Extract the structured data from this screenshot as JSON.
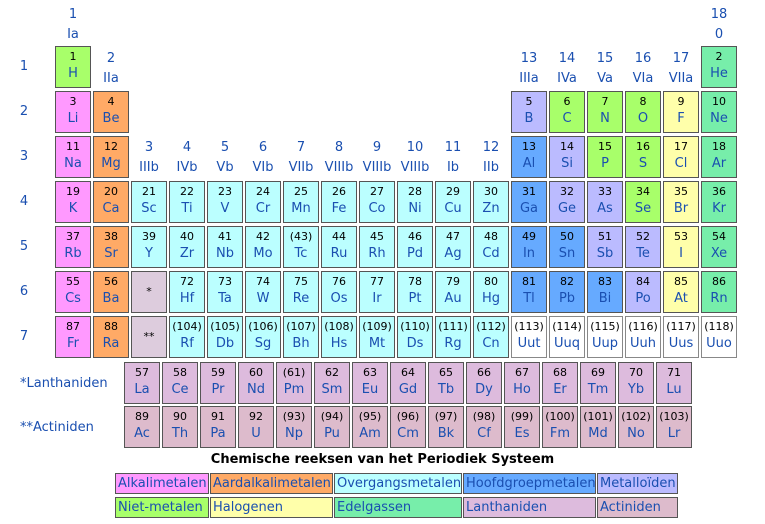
{
  "group_headers": [
    {
      "num": "1",
      "roman": "Ia"
    },
    {
      "num": "2",
      "roman": "IIa"
    },
    {
      "num": "3",
      "roman": "IIIb"
    },
    {
      "num": "4",
      "roman": "IVb"
    },
    {
      "num": "5",
      "roman": "Vb"
    },
    {
      "num": "6",
      "roman": "VIb"
    },
    {
      "num": "7",
      "roman": "VIIb"
    },
    {
      "num": "8",
      "roman": "VIIIb"
    },
    {
      "num": "9",
      "roman": "VIIIb"
    },
    {
      "num": "10",
      "roman": "VIIIb"
    },
    {
      "num": "11",
      "roman": "Ib"
    },
    {
      "num": "12",
      "roman": "IIb"
    },
    {
      "num": "13",
      "roman": "IIIa"
    },
    {
      "num": "14",
      "roman": "IVa"
    },
    {
      "num": "15",
      "roman": "Va"
    },
    {
      "num": "16",
      "roman": "VIa"
    },
    {
      "num": "17",
      "roman": "VIIa"
    },
    {
      "num": "18",
      "roman": "0"
    }
  ],
  "periods": [
    "1",
    "2",
    "3",
    "4",
    "5",
    "6",
    "7"
  ],
  "elements": [
    {
      "n": "1",
      "s": "H",
      "p": 1,
      "g": 1,
      "c": "nonmetal"
    },
    {
      "n": "2",
      "s": "He",
      "p": 1,
      "g": 18,
      "c": "noble"
    },
    {
      "n": "3",
      "s": "Li",
      "p": 2,
      "g": 1,
      "c": "alkali"
    },
    {
      "n": "4",
      "s": "Be",
      "p": 2,
      "g": 2,
      "c": "alkaline"
    },
    {
      "n": "5",
      "s": "B",
      "p": 2,
      "g": 13,
      "c": "metalloid"
    },
    {
      "n": "6",
      "s": "C",
      "p": 2,
      "g": 14,
      "c": "nonmetal"
    },
    {
      "n": "7",
      "s": "N",
      "p": 2,
      "g": 15,
      "c": "nonmetal"
    },
    {
      "n": "8",
      "s": "O",
      "p": 2,
      "g": 16,
      "c": "nonmetal"
    },
    {
      "n": "9",
      "s": "F",
      "p": 2,
      "g": 17,
      "c": "halogen"
    },
    {
      "n": "10",
      "s": "Ne",
      "p": 2,
      "g": 18,
      "c": "noble"
    },
    {
      "n": "11",
      "s": "Na",
      "p": 3,
      "g": 1,
      "c": "alkali"
    },
    {
      "n": "12",
      "s": "Mg",
      "p": 3,
      "g": 2,
      "c": "alkaline"
    },
    {
      "n": "13",
      "s": "Al",
      "p": 3,
      "g": 13,
      "c": "main"
    },
    {
      "n": "14",
      "s": "Si",
      "p": 3,
      "g": 14,
      "c": "metalloid"
    },
    {
      "n": "15",
      "s": "P",
      "p": 3,
      "g": 15,
      "c": "nonmetal"
    },
    {
      "n": "16",
      "s": "S",
      "p": 3,
      "g": 16,
      "c": "nonmetal"
    },
    {
      "n": "17",
      "s": "Cl",
      "p": 3,
      "g": 17,
      "c": "halogen"
    },
    {
      "n": "18",
      "s": "Ar",
      "p": 3,
      "g": 18,
      "c": "noble"
    },
    {
      "n": "19",
      "s": "K",
      "p": 4,
      "g": 1,
      "c": "alkali"
    },
    {
      "n": "20",
      "s": "Ca",
      "p": 4,
      "g": 2,
      "c": "alkaline"
    },
    {
      "n": "21",
      "s": "Sc",
      "p": 4,
      "g": 3,
      "c": "transition"
    },
    {
      "n": "22",
      "s": "Ti",
      "p": 4,
      "g": 4,
      "c": "transition"
    },
    {
      "n": "23",
      "s": "V",
      "p": 4,
      "g": 5,
      "c": "transition"
    },
    {
      "n": "24",
      "s": "Cr",
      "p": 4,
      "g": 6,
      "c": "transition"
    },
    {
      "n": "25",
      "s": "Mn",
      "p": 4,
      "g": 7,
      "c": "transition"
    },
    {
      "n": "26",
      "s": "Fe",
      "p": 4,
      "g": 8,
      "c": "transition"
    },
    {
      "n": "27",
      "s": "Co",
      "p": 4,
      "g": 9,
      "c": "transition"
    },
    {
      "n": "28",
      "s": "Ni",
      "p": 4,
      "g": 10,
      "c": "transition"
    },
    {
      "n": "29",
      "s": "Cu",
      "p": 4,
      "g": 11,
      "c": "transition"
    },
    {
      "n": "30",
      "s": "Zn",
      "p": 4,
      "g": 12,
      "c": "transition"
    },
    {
      "n": "31",
      "s": "Ga",
      "p": 4,
      "g": 13,
      "c": "main"
    },
    {
      "n": "32",
      "s": "Ge",
      "p": 4,
      "g": 14,
      "c": "metalloid"
    },
    {
      "n": "33",
      "s": "As",
      "p": 4,
      "g": 15,
      "c": "metalloid"
    },
    {
      "n": "34",
      "s": "Se",
      "p": 4,
      "g": 16,
      "c": "nonmetal"
    },
    {
      "n": "35",
      "s": "Br",
      "p": 4,
      "g": 17,
      "c": "halogen"
    },
    {
      "n": "36",
      "s": "Kr",
      "p": 4,
      "g": 18,
      "c": "noble"
    },
    {
      "n": "37",
      "s": "Rb",
      "p": 5,
      "g": 1,
      "c": "alkali"
    },
    {
      "n": "38",
      "s": "Sr",
      "p": 5,
      "g": 2,
      "c": "alkaline"
    },
    {
      "n": "39",
      "s": "Y",
      "p": 5,
      "g": 3,
      "c": "transition"
    },
    {
      "n": "40",
      "s": "Zr",
      "p": 5,
      "g": 4,
      "c": "transition"
    },
    {
      "n": "41",
      "s": "Nb",
      "p": 5,
      "g": 5,
      "c": "transition"
    },
    {
      "n": "42",
      "s": "Mo",
      "p": 5,
      "g": 6,
      "c": "transition"
    },
    {
      "n": "(43)",
      "s": "Tc",
      "p": 5,
      "g": 7,
      "c": "transition"
    },
    {
      "n": "44",
      "s": "Ru",
      "p": 5,
      "g": 8,
      "c": "transition"
    },
    {
      "n": "45",
      "s": "Rh",
      "p": 5,
      "g": 9,
      "c": "transition"
    },
    {
      "n": "46",
      "s": "Pd",
      "p": 5,
      "g": 10,
      "c": "transition"
    },
    {
      "n": "47",
      "s": "Ag",
      "p": 5,
      "g": 11,
      "c": "transition"
    },
    {
      "n": "48",
      "s": "Cd",
      "p": 5,
      "g": 12,
      "c": "transition"
    },
    {
      "n": "49",
      "s": "In",
      "p": 5,
      "g": 13,
      "c": "main"
    },
    {
      "n": "50",
      "s": "Sn",
      "p": 5,
      "g": 14,
      "c": "main"
    },
    {
      "n": "51",
      "s": "Sb",
      "p": 5,
      "g": 15,
      "c": "metalloid"
    },
    {
      "n": "52",
      "s": "Te",
      "p": 5,
      "g": 16,
      "c": "metalloid"
    },
    {
      "n": "53",
      "s": "I",
      "p": 5,
      "g": 17,
      "c": "halogen"
    },
    {
      "n": "54",
      "s": "Xe",
      "p": 5,
      "g": 18,
      "c": "noble"
    },
    {
      "n": "55",
      "s": "Cs",
      "p": 6,
      "g": 1,
      "c": "alkali"
    },
    {
      "n": "56",
      "s": "Ba",
      "p": 6,
      "g": 2,
      "c": "alkaline"
    },
    {
      "n": "72",
      "s": "Hf",
      "p": 6,
      "g": 4,
      "c": "transition"
    },
    {
      "n": "73",
      "s": "Ta",
      "p": 6,
      "g": 5,
      "c": "transition"
    },
    {
      "n": "74",
      "s": "W",
      "p": 6,
      "g": 6,
      "c": "transition"
    },
    {
      "n": "75",
      "s": "Re",
      "p": 6,
      "g": 7,
      "c": "transition"
    },
    {
      "n": "76",
      "s": "Os",
      "p": 6,
      "g": 8,
      "c": "transition"
    },
    {
      "n": "77",
      "s": "Ir",
      "p": 6,
      "g": 9,
      "c": "transition"
    },
    {
      "n": "78",
      "s": "Pt",
      "p": 6,
      "g": 10,
      "c": "transition"
    },
    {
      "n": "79",
      "s": "Au",
      "p": 6,
      "g": 11,
      "c": "transition"
    },
    {
      "n": "80",
      "s": "Hg",
      "p": 6,
      "g": 12,
      "c": "transition"
    },
    {
      "n": "81",
      "s": "Tl",
      "p": 6,
      "g": 13,
      "c": "main"
    },
    {
      "n": "82",
      "s": "Pb",
      "p": 6,
      "g": 14,
      "c": "main"
    },
    {
      "n": "83",
      "s": "Bi",
      "p": 6,
      "g": 15,
      "c": "main"
    },
    {
      "n": "84",
      "s": "Po",
      "p": 6,
      "g": 16,
      "c": "metalloid"
    },
    {
      "n": "85",
      "s": "At",
      "p": 6,
      "g": 17,
      "c": "halogen"
    },
    {
      "n": "86",
      "s": "Rn",
      "p": 6,
      "g": 18,
      "c": "noble"
    },
    {
      "n": "87",
      "s": "Fr",
      "p": 7,
      "g": 1,
      "c": "alkali"
    },
    {
      "n": "88",
      "s": "Ra",
      "p": 7,
      "g": 2,
      "c": "alkaline"
    },
    {
      "n": "(104)",
      "s": "Rf",
      "p": 7,
      "g": 4,
      "c": "transition"
    },
    {
      "n": "(105)",
      "s": "Db",
      "p": 7,
      "g": 5,
      "c": "transition"
    },
    {
      "n": "(106)",
      "s": "Sg",
      "p": 7,
      "g": 6,
      "c": "transition"
    },
    {
      "n": "(107)",
      "s": "Bh",
      "p": 7,
      "g": 7,
      "c": "transition"
    },
    {
      "n": "(108)",
      "s": "Hs",
      "p": 7,
      "g": 8,
      "c": "transition"
    },
    {
      "n": "(109)",
      "s": "Mt",
      "p": 7,
      "g": 9,
      "c": "transition"
    },
    {
      "n": "(110)",
      "s": "Ds",
      "p": 7,
      "g": 10,
      "c": "transition"
    },
    {
      "n": "(111)",
      "s": "Rg",
      "p": 7,
      "g": 11,
      "c": "transition"
    },
    {
      "n": "(112)",
      "s": "Cn",
      "p": 7,
      "g": 12,
      "c": "transition"
    },
    {
      "n": "(113)",
      "s": "Uut",
      "p": 7,
      "g": 13,
      "c": "unknown"
    },
    {
      "n": "(114)",
      "s": "Uuq",
      "p": 7,
      "g": 14,
      "c": "unknown"
    },
    {
      "n": "(115)",
      "s": "Uup",
      "p": 7,
      "g": 15,
      "c": "unknown"
    },
    {
      "n": "(116)",
      "s": "Uuh",
      "p": 7,
      "g": 16,
      "c": "unknown"
    },
    {
      "n": "(117)",
      "s": "Uus",
      "p": 7,
      "g": 17,
      "c": "unknown"
    },
    {
      "n": "(118)",
      "s": "Uuo",
      "p": 7,
      "g": 18,
      "c": "unknown"
    }
  ],
  "placeholders": [
    {
      "mark": "*",
      "p": 6,
      "g": 3
    },
    {
      "mark": "**",
      "p": 7,
      "g": 3
    }
  ],
  "lanthanides_label": "*Lanthaniden",
  "actinides_label": "**Actiniden",
  "lanthanides": [
    {
      "n": "57",
      "s": "La"
    },
    {
      "n": "58",
      "s": "Ce"
    },
    {
      "n": "59",
      "s": "Pr"
    },
    {
      "n": "60",
      "s": "Nd"
    },
    {
      "n": "(61)",
      "s": "Pm"
    },
    {
      "n": "62",
      "s": "Sm"
    },
    {
      "n": "63",
      "s": "Eu"
    },
    {
      "n": "64",
      "s": "Gd"
    },
    {
      "n": "65",
      "s": "Tb"
    },
    {
      "n": "66",
      "s": "Dy"
    },
    {
      "n": "67",
      "s": "Ho"
    },
    {
      "n": "68",
      "s": "Er"
    },
    {
      "n": "69",
      "s": "Tm"
    },
    {
      "n": "70",
      "s": "Yb"
    },
    {
      "n": "71",
      "s": "Lu"
    }
  ],
  "actinides": [
    {
      "n": "89",
      "s": "Ac"
    },
    {
      "n": "90",
      "s": "Th"
    },
    {
      "n": "91",
      "s": "Pa"
    },
    {
      "n": "92",
      "s": "U"
    },
    {
      "n": "(93)",
      "s": "Np"
    },
    {
      "n": "(94)",
      "s": "Pu"
    },
    {
      "n": "(95)",
      "s": "Am"
    },
    {
      "n": "(96)",
      "s": "Cm"
    },
    {
      "n": "(97)",
      "s": "Bk"
    },
    {
      "n": "(98)",
      "s": "Cf"
    },
    {
      "n": "(99)",
      "s": "Es"
    },
    {
      "n": "(100)",
      "s": "Fm"
    },
    {
      "n": "(101)",
      "s": "Md"
    },
    {
      "n": "(102)",
      "s": "No"
    },
    {
      "n": "(103)",
      "s": "Lr"
    }
  ],
  "series_title": "Chemische reeksen van het Periodiek Systeem",
  "legend": [
    {
      "label": "Alkalimetalen",
      "c": "alkali"
    },
    {
      "label": "Aardalkalimetalen",
      "c": "alkaline"
    },
    {
      "label": "Overgangsmetalen",
      "c": "transition"
    },
    {
      "label": "Hoofdgroepmetalen",
      "c": "main"
    },
    {
      "label": "Metalloïden",
      "c": "metalloid"
    },
    {
      "label": "Niet-metalen",
      "c": "nonmetal"
    },
    {
      "label": "Halogenen",
      "c": "halogen"
    },
    {
      "label": "Edelgassen",
      "c": "noble"
    },
    {
      "label": "Lanthaniden",
      "c": "lanthanide"
    },
    {
      "label": "Actiniden",
      "c": "actinide"
    }
  ],
  "colors": {
    "alkali": "#ff99ff",
    "alkaline": "#ffaa66",
    "transition": "#bbffff",
    "main": "#66aaff",
    "metalloid": "#bbbbff",
    "nonmetal": "#a8ff6a",
    "halogen": "#ffffaa",
    "noble": "#77eeaa",
    "lanthanide": "#ddbbdd",
    "actinide": "#ddbbcc",
    "label_blue": "#1a4fb0"
  }
}
